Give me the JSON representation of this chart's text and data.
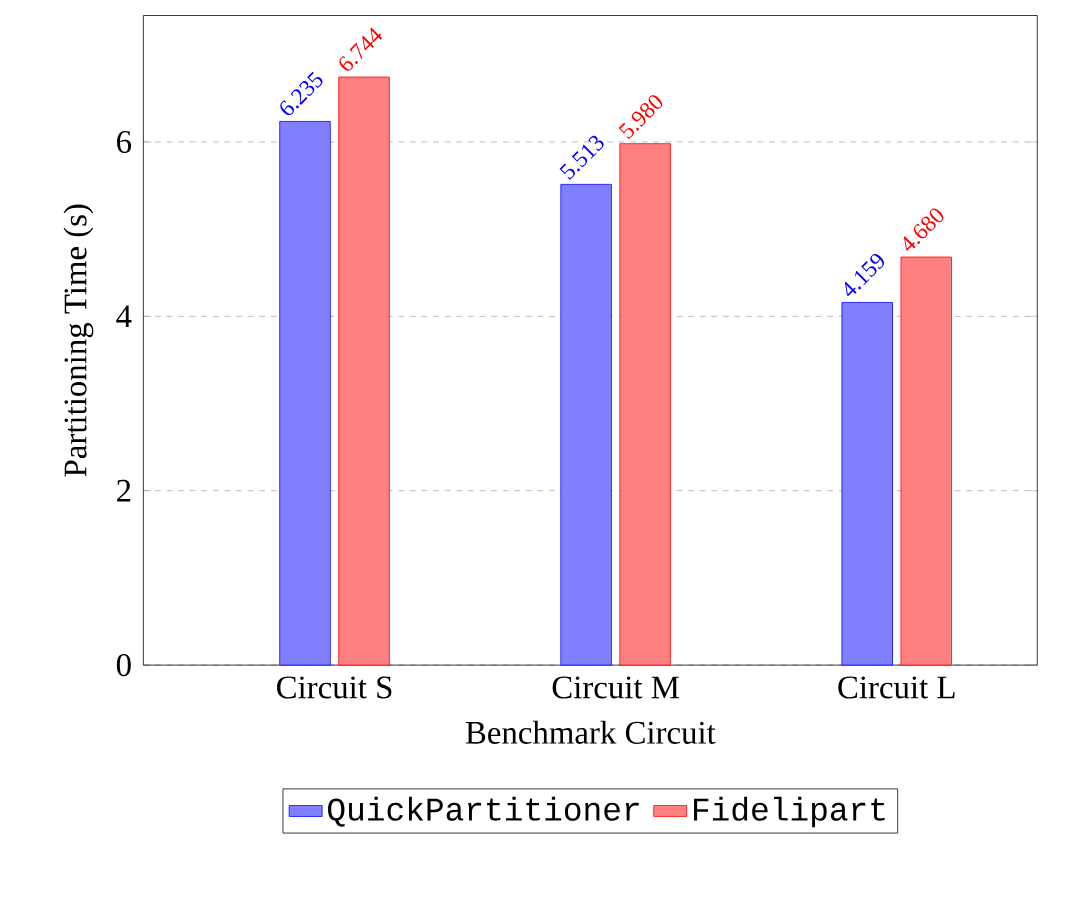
{
  "chart_data": {
    "type": "bar",
    "xlabel": "Benchmark Circuit",
    "ylabel": "Partitioning Time (s)",
    "categories": [
      "Circuit S",
      "Circuit M",
      "Circuit L"
    ],
    "series": [
      {
        "name": "QuickPartitioner",
        "color": "#8080ff",
        "values": [
          6.235,
          5.513,
          4.159
        ],
        "value_labels": [
          "6.235",
          "5.513",
          "4.159"
        ]
      },
      {
        "name": "Fidelipart",
        "color": "#ff8080",
        "values": [
          6.744,
          5.98,
          4.68
        ],
        "value_labels": [
          "6.744",
          "5.980",
          "4.680"
        ]
      }
    ],
    "ylim": [
      0,
      7.45
    ],
    "yticks": [
      0,
      2,
      4,
      6
    ],
    "grid": "y",
    "legend": "bottom"
  }
}
